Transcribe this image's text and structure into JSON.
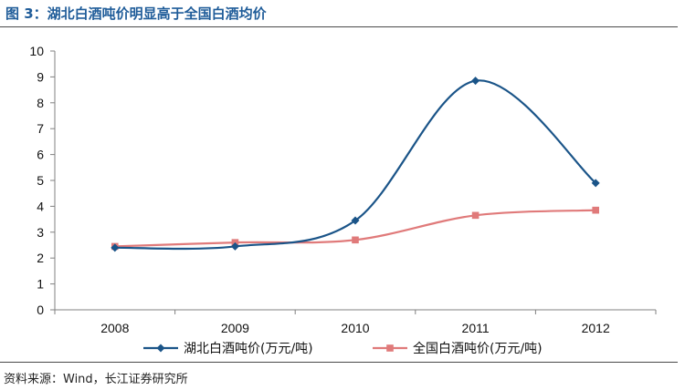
{
  "figure_title": "图 3：湖北白酒吨价明显高于全国白酒均价",
  "source_note": "资料来源：Wind，长江证券研究所",
  "chart_data": {
    "type": "line",
    "title": "",
    "xlabel": "",
    "ylabel": "",
    "categories": [
      "2008",
      "2009",
      "2010",
      "2011",
      "2012"
    ],
    "ylim": [
      0,
      10
    ],
    "yticks": [
      "0",
      "1",
      "2",
      "3",
      "4",
      "5",
      "6",
      "7",
      "8",
      "9",
      "10"
    ],
    "grid": false,
    "legend_position": "bottom",
    "smooth": true,
    "series": [
      {
        "name": "湖北白酒吨价(万元/吨)",
        "values": [
          2.4,
          2.45,
          3.45,
          8.85,
          4.9
        ],
        "color": "#1a5488",
        "marker": "diamond"
      },
      {
        "name": "全国白酒吨价(万元/吨)",
        "values": [
          2.45,
          2.6,
          2.7,
          3.65,
          3.85
        ],
        "color": "#e07a7a",
        "marker": "square"
      }
    ]
  }
}
